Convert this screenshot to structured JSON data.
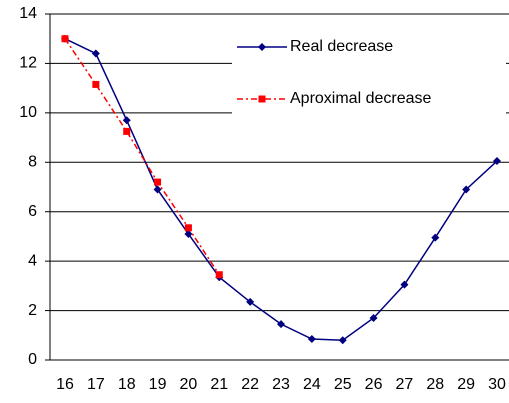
{
  "chart_data": {
    "type": "line",
    "categories": [
      16,
      17,
      18,
      19,
      20,
      21,
      22,
      23,
      24,
      25,
      26,
      27,
      28,
      29,
      30
    ],
    "series": [
      {
        "name": "Real decrease",
        "color": "#000080",
        "marker": "diamond",
        "dash": "solid",
        "values": [
          13.0,
          12.4,
          9.7,
          6.9,
          5.1,
          3.35,
          2.35,
          1.45,
          0.85,
          0.8,
          1.7,
          3.05,
          4.95,
          6.9,
          8.05
        ]
      },
      {
        "name": "Aproximal decrease",
        "color": "#ff0000",
        "marker": "square",
        "dash": "dashdot",
        "values": [
          13.0,
          11.15,
          9.25,
          7.2,
          5.35,
          3.45,
          null,
          null,
          null,
          null,
          null,
          null,
          null,
          null,
          null
        ]
      }
    ],
    "ylim": [
      0,
      14
    ],
    "yticks": [
      0,
      2,
      4,
      6,
      8,
      10,
      12,
      14
    ],
    "grid": true,
    "legend": "upper right"
  }
}
